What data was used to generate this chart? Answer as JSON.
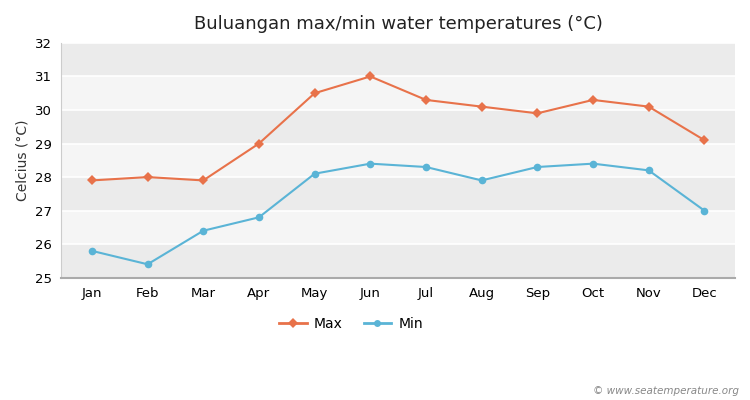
{
  "title": "Buluangan max/min water temperatures (°C)",
  "ylabel": "Celcius (°C)",
  "months": [
    "Jan",
    "Feb",
    "Mar",
    "Apr",
    "May",
    "Jun",
    "Jul",
    "Aug",
    "Sep",
    "Oct",
    "Nov",
    "Dec"
  ],
  "max_temps": [
    27.9,
    28.0,
    27.9,
    29.0,
    30.5,
    31.0,
    30.3,
    30.1,
    29.9,
    30.3,
    30.1,
    29.1
  ],
  "min_temps": [
    25.8,
    25.4,
    26.4,
    26.8,
    28.1,
    28.4,
    28.3,
    27.9,
    28.3,
    28.4,
    28.2,
    27.0
  ],
  "max_color": "#e8724a",
  "min_color": "#5ab4d6",
  "band_colors": [
    "#ebebeb",
    "#f5f5f5"
  ],
  "fig_bg_color": "#ffffff",
  "ylim_min": 25,
  "ylim_max": 32,
  "yticks": [
    25,
    26,
    27,
    28,
    29,
    30,
    31,
    32
  ],
  "watermark": "© www.seatemperature.org",
  "legend_max": "Max",
  "legend_min": "Min",
  "title_fontsize": 13,
  "label_fontsize": 10,
  "tick_fontsize": 9.5,
  "watermark_fontsize": 7.5
}
